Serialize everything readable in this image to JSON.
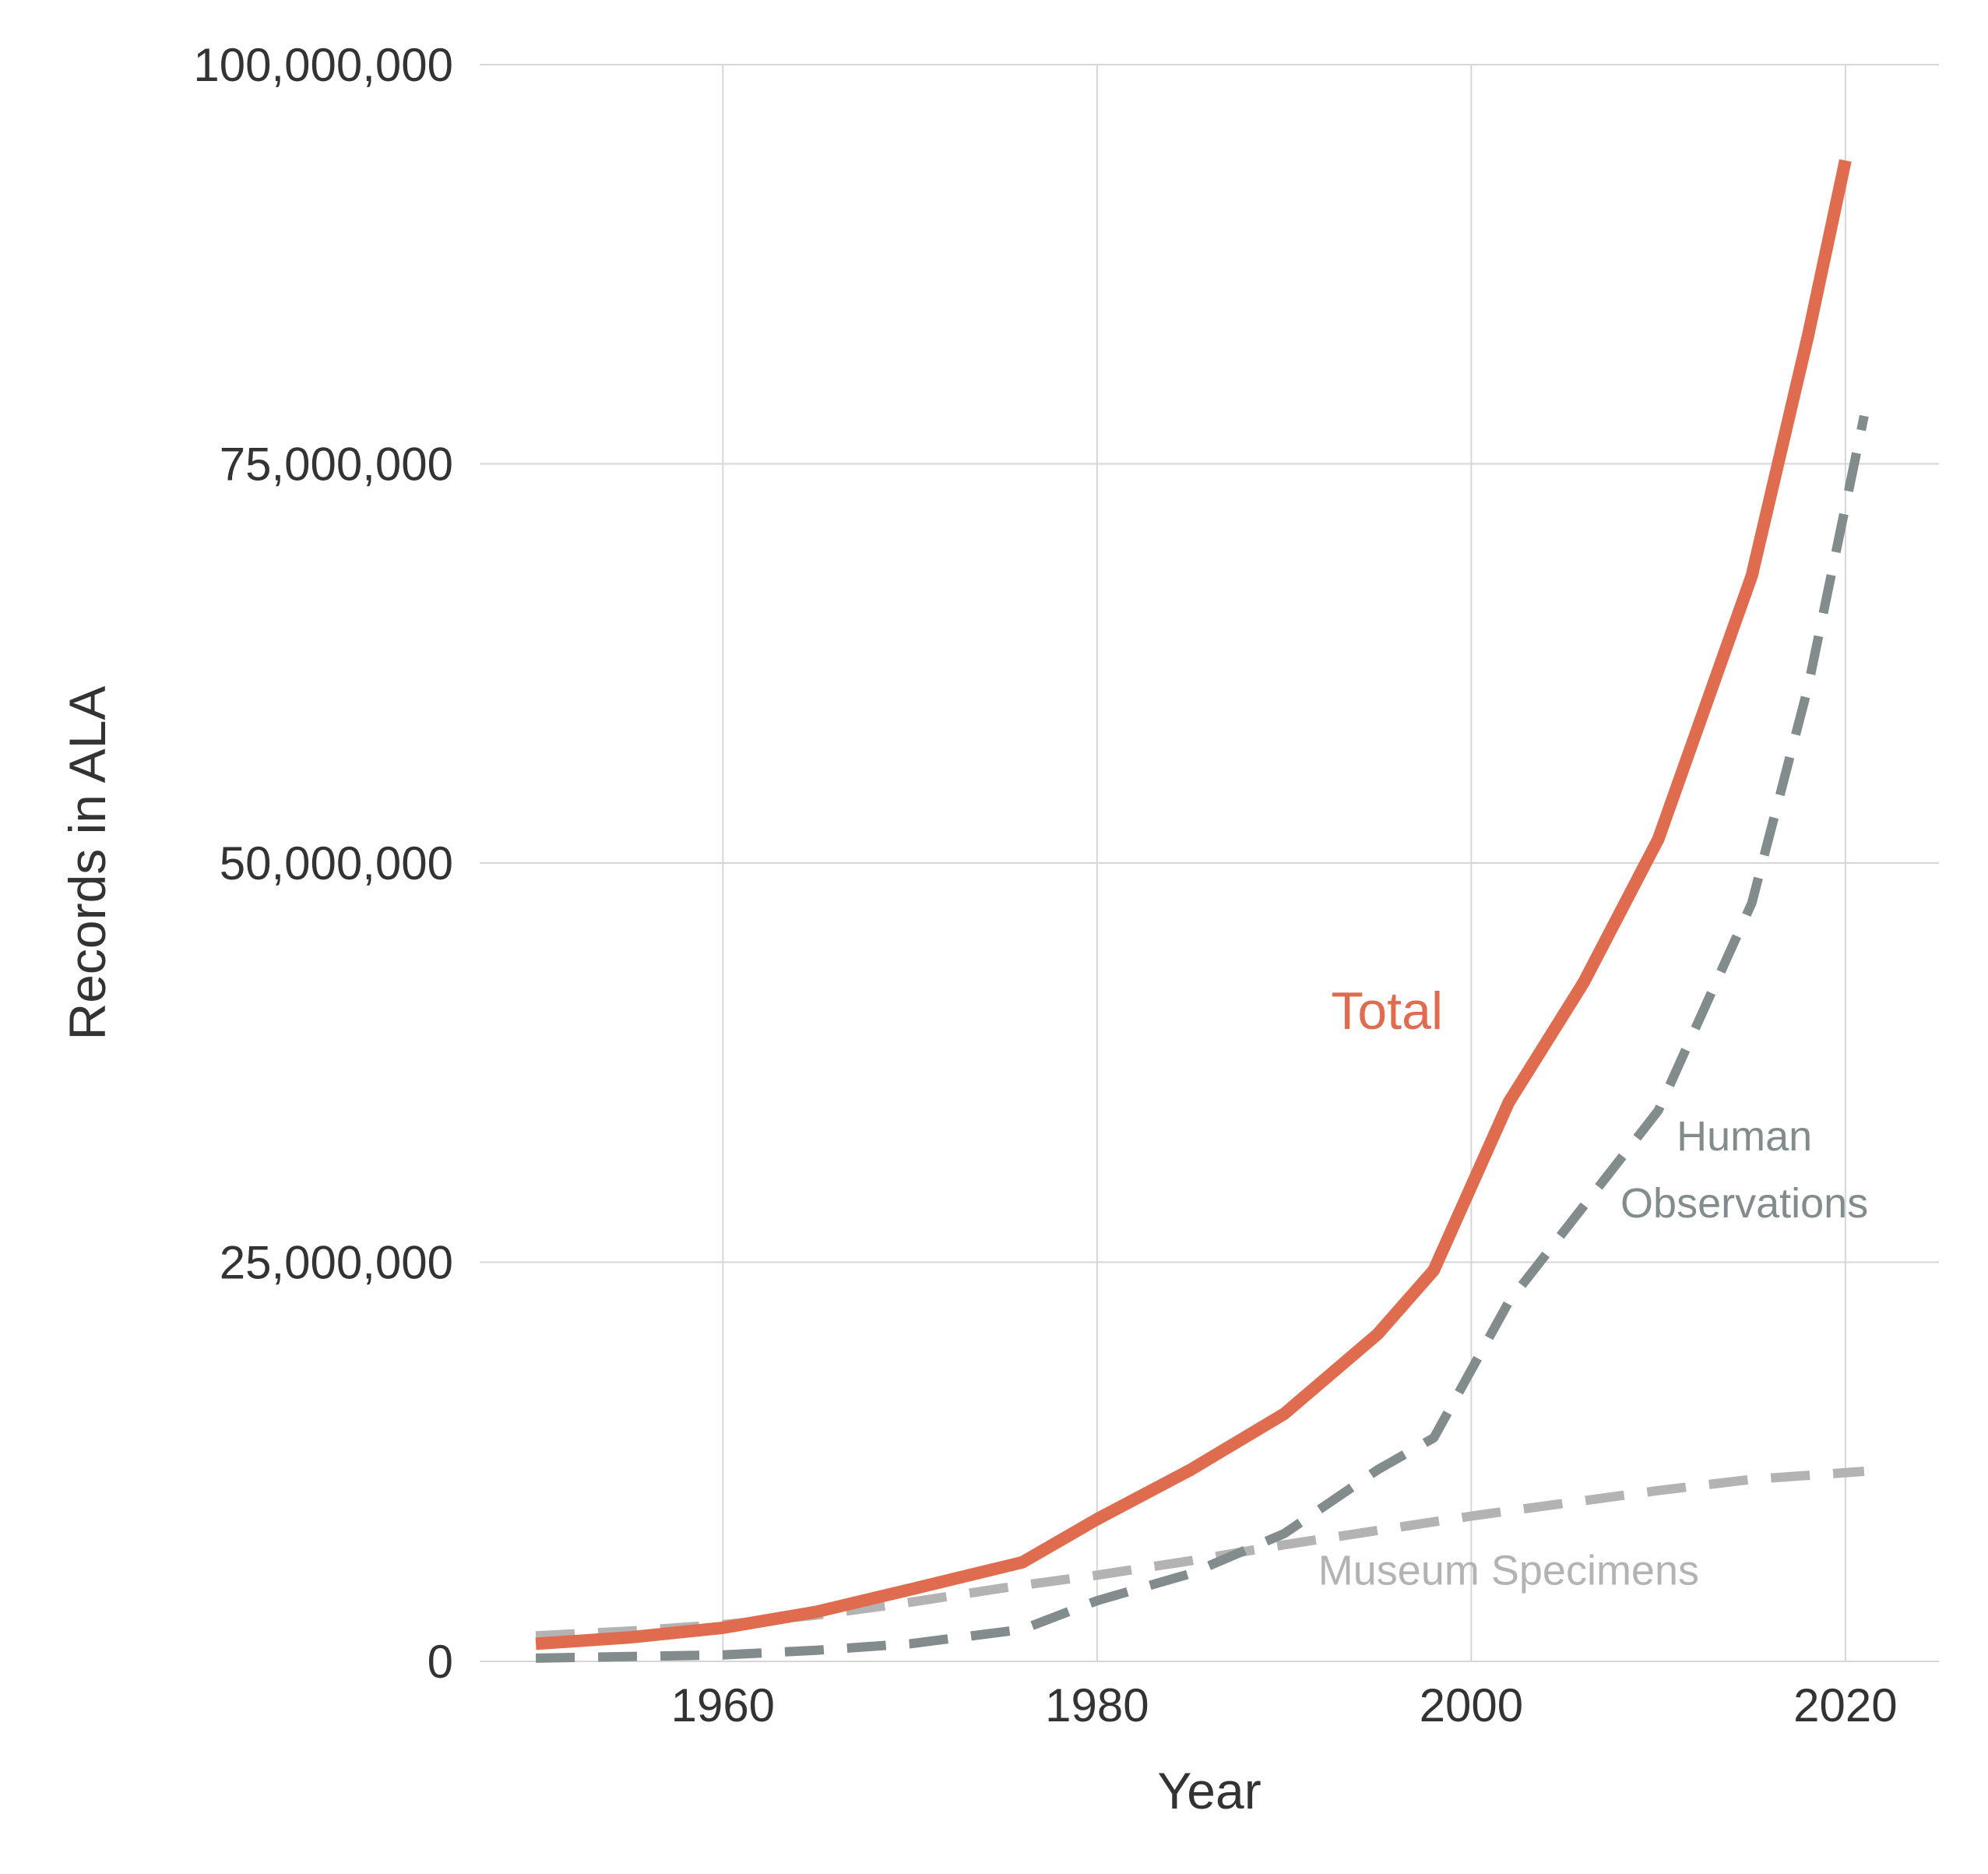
{
  "chart_data": {
    "type": "line",
    "title": "",
    "xlabel": "Year",
    "ylabel": "Records in ALA",
    "xlim": [
      1947,
      2025
    ],
    "ylim": [
      0,
      100000000
    ],
    "x_ticks": [
      1960,
      1980,
      2000,
      2020
    ],
    "x_tick_labels": [
      "1960",
      "1980",
      "2000",
      "2020"
    ],
    "y_ticks": [
      0,
      25000000,
      50000000,
      75000000,
      100000000
    ],
    "y_tick_labels": [
      "0",
      "25,000,000",
      "50,000,000",
      "75,000,000",
      "100,000,000"
    ],
    "grid": true,
    "series": [
      {
        "name": "Total",
        "color": "#e06c4f",
        "style": "solid",
        "x": [
          1950,
          1955,
          1960,
          1965,
          1970,
          1976,
          1980,
          1985,
          1990,
          1995,
          1998,
          2002,
          2006,
          2010,
          2015,
          2018,
          2020
        ],
        "y": [
          1100000,
          1500000,
          2100000,
          3100000,
          4500000,
          6200000,
          8900000,
          12000000,
          15500000,
          20500000,
          24500000,
          35000000,
          42500000,
          51500000,
          68000000,
          83000000,
          94000000
        ]
      },
      {
        "name": "Human Observations",
        "color": "#838c8c",
        "style": "dashed",
        "x": [
          1950,
          1955,
          1960,
          1965,
          1970,
          1976,
          1980,
          1985,
          1990,
          1995,
          1998,
          2002,
          2006,
          2010,
          2015,
          2018,
          2021
        ],
        "y": [
          200000,
          300000,
          400000,
          700000,
          1100000,
          2000000,
          3800000,
          5500000,
          8000000,
          12000000,
          14000000,
          22500000,
          28500000,
          34500000,
          47500000,
          61000000,
          78000000
        ]
      },
      {
        "name": "Museum Specimens",
        "color": "#b3b3b3",
        "style": "dashed",
        "x": [
          1950,
          1955,
          1960,
          1965,
          1970,
          1975,
          1980,
          1985,
          1990,
          1995,
          2000,
          2005,
          2010,
          2015,
          2021
        ],
        "y": [
          1600000,
          1900000,
          2300000,
          2900000,
          3700000,
          4600000,
          5400000,
          6300000,
          7300000,
          8200000,
          9100000,
          9900000,
          10700000,
          11400000,
          11900000
        ]
      }
    ],
    "annotations": [
      {
        "text": "Total",
        "series": "Total",
        "x": 1995.5,
        "y": 39600000
      },
      {
        "text": "Human",
        "series": "Human Observations",
        "x": 2014.6,
        "y": 32000000
      },
      {
        "text": "Observations",
        "series": "Human Observations",
        "x": 2014.6,
        "y": 27800000
      },
      {
        "text": "Museum Specimens",
        "series": "Museum Specimens",
        "x": 2002,
        "y": 4800000
      }
    ]
  }
}
